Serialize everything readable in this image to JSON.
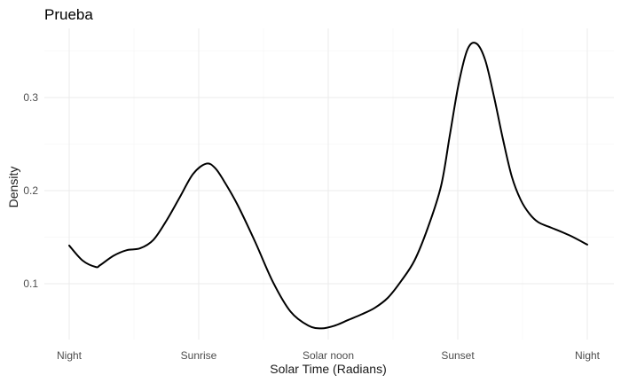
{
  "chart_data": {
    "type": "line",
    "title": "Prueba",
    "xlabel": "Solar Time (Radians)",
    "ylabel": "Density",
    "xlim": [
      0,
      6.2832
    ],
    "ylim": [
      0.04,
      0.37
    ],
    "x_ticks": [
      {
        "value": 0,
        "label": "Night"
      },
      {
        "value": 1.5708,
        "label": "Sunrise"
      },
      {
        "value": 3.1416,
        "label": "Solar noon"
      },
      {
        "value": 4.7124,
        "label": "Sunset"
      },
      {
        "value": 6.2832,
        "label": "Night"
      }
    ],
    "y_ticks": [
      {
        "value": 0.1,
        "label": "0.1"
      },
      {
        "value": 0.2,
        "label": "0.2"
      },
      {
        "value": 0.3,
        "label": "0.3"
      }
    ],
    "grid": true,
    "legend": "none",
    "line_color": "#000000",
    "series": [
      {
        "x": [
          0,
          0.161,
          0.322,
          0.376,
          0.537,
          0.698,
          0.859,
          1.02,
          1.181,
          1.342,
          1.503,
          1.664,
          1.772,
          1.879,
          2.04,
          2.255,
          2.47,
          2.685,
          2.9,
          3.061,
          3.222,
          3.383,
          3.544,
          3.705,
          3.866,
          4.027,
          4.188,
          4.349,
          4.51,
          4.617,
          4.724,
          4.832,
          4.939,
          5.046,
          5.154,
          5.261,
          5.368,
          5.476,
          5.583,
          5.69,
          5.851,
          6.066,
          6.283
        ],
        "y": [
          0.141,
          0.125,
          0.118,
          0.12,
          0.13,
          0.136,
          0.138,
          0.147,
          0.168,
          0.193,
          0.218,
          0.229,
          0.224,
          0.21,
          0.185,
          0.145,
          0.102,
          0.07,
          0.055,
          0.052,
          0.055,
          0.061,
          0.067,
          0.074,
          0.085,
          0.103,
          0.125,
          0.16,
          0.205,
          0.26,
          0.315,
          0.352,
          0.358,
          0.34,
          0.3,
          0.255,
          0.215,
          0.19,
          0.175,
          0.166,
          0.16,
          0.152,
          0.142
        ]
      }
    ]
  }
}
